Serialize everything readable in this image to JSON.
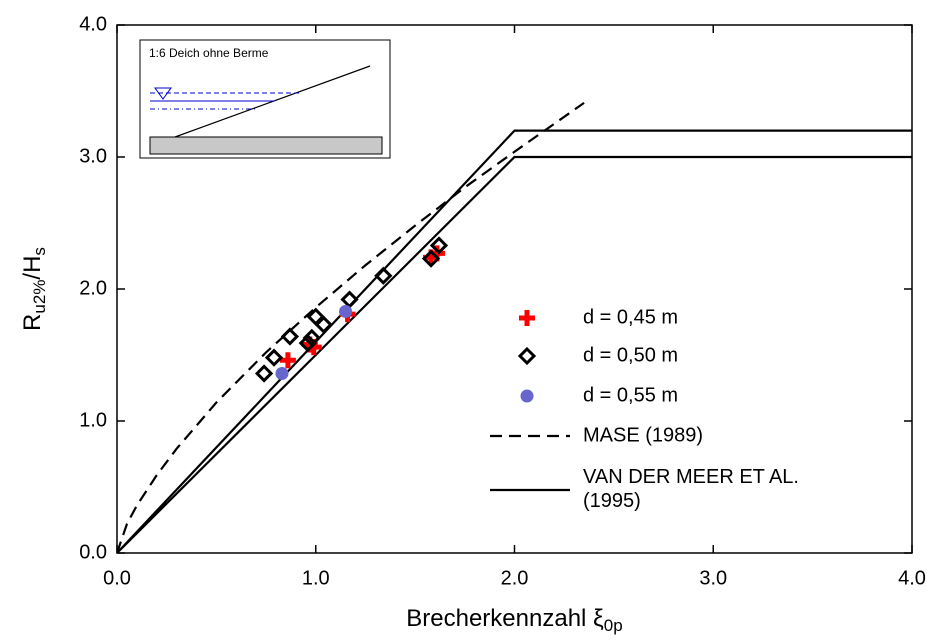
{
  "chart_data": {
    "type": "scatter",
    "ylabel": [
      "R",
      "u2%",
      "/H",
      "s"
    ],
    "xlabel": [
      "Brecherkennzahl ξ",
      "0p"
    ],
    "annotation": "1:6 Deich ohne Berme",
    "xlim": [
      0,
      4
    ],
    "ylim": [
      0,
      4
    ],
    "xticks": [
      {
        "value": 0,
        "label": "0.0"
      },
      {
        "value": 1,
        "label": "1.0"
      },
      {
        "value": 2,
        "label": "2.0"
      },
      {
        "value": 3,
        "label": "3.0"
      },
      {
        "value": 4,
        "label": "4.0"
      }
    ],
    "yticks": [
      {
        "value": 0,
        "label": "0.0"
      },
      {
        "value": 1,
        "label": "1.0"
      },
      {
        "value": 2,
        "label": "2.0"
      },
      {
        "value": 3,
        "label": "3.0"
      },
      {
        "value": 4,
        "label": "4.0"
      }
    ],
    "series": [
      {
        "name": "d = 0,45 m",
        "color": "#ff0000",
        "marker": "plus",
        "x": [
          0.86,
          0.97,
          0.99,
          1.16,
          1.58,
          1.61
        ],
        "values": [
          1.46,
          1.58,
          1.56,
          1.81,
          2.24,
          2.27
        ]
      },
      {
        "name": "d = 0,50 m",
        "color": "#000000",
        "marker": "diamond",
        "x": [
          0.74,
          0.79,
          0.87,
          0.96,
          0.98,
          1.0,
          1.04,
          1.17,
          1.34,
          1.58,
          1.62
        ],
        "values": [
          1.36,
          1.48,
          1.64,
          1.59,
          1.63,
          1.79,
          1.73,
          1.92,
          2.1,
          2.23,
          2.33
        ]
      },
      {
        "name": "d = 0,55 m",
        "color": "#6666cc",
        "marker": "dot",
        "x": [
          0.83,
          1.15
        ],
        "values": [
          1.36,
          1.83
        ]
      },
      {
        "name": "MASE (1989)",
        "color": "#000000",
        "marker": "dashed-line",
        "x": [
          0,
          0.05,
          0.1,
          0.2,
          0.3,
          0.5,
          0.75,
          1,
          1.25,
          1.5,
          1.75,
          2,
          2.35
        ],
        "values": [
          0,
          0.22,
          0.36,
          0.59,
          0.79,
          1.14,
          1.52,
          1.86,
          2.18,
          2.48,
          2.77,
          3.04,
          3.41
        ]
      },
      {
        "name": "VAN DER MEER ET AL. (1995)",
        "color": "#000000",
        "marker": "solid-line",
        "x": [
          0,
          2,
          4,
          null,
          0,
          2,
          4
        ],
        "values": [
          0,
          3.2,
          3.2,
          null,
          0,
          3.0,
          3.0
        ]
      }
    ]
  }
}
